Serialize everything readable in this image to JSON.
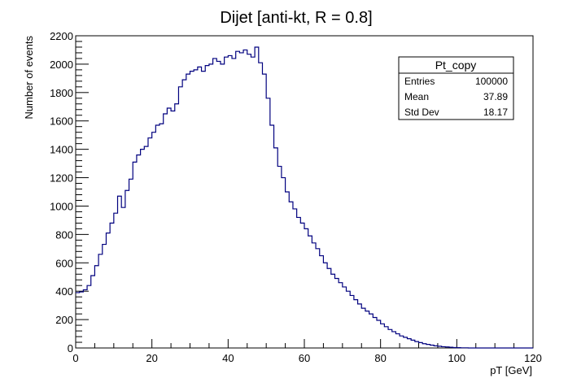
{
  "chart_data": {
    "type": "bar",
    "histogram": true,
    "title": "Dijet [anti-kt, R = 0.8]",
    "xlabel": "pT [GeV]",
    "ylabel": "Number of events",
    "xlim": [
      0,
      120
    ],
    "ylim": [
      0,
      2200
    ],
    "bin_width": 1,
    "line_color": "#00007f",
    "xticks": [
      0,
      20,
      40,
      60,
      80,
      100,
      120
    ],
    "yticks": [
      0,
      200,
      400,
      600,
      800,
      1000,
      1200,
      1400,
      1600,
      1800,
      2000,
      2200
    ],
    "values": [
      390,
      395,
      410,
      440,
      510,
      580,
      660,
      730,
      810,
      880,
      950,
      1070,
      990,
      1110,
      1190,
      1310,
      1360,
      1400,
      1420,
      1480,
      1520,
      1570,
      1580,
      1650,
      1690,
      1670,
      1720,
      1840,
      1890,
      1930,
      1950,
      1960,
      1980,
      1950,
      1990,
      2000,
      2040,
      2020,
      2000,
      2050,
      2060,
      2040,
      2090,
      2080,
      2100,
      2070,
      2050,
      2120,
      2010,
      1930,
      1760,
      1570,
      1410,
      1280,
      1200,
      1100,
      1030,
      980,
      920,
      880,
      840,
      790,
      740,
      700,
      650,
      600,
      560,
      520,
      490,
      460,
      430,
      400,
      370,
      340,
      310,
      280,
      260,
      240,
      215,
      195,
      170,
      150,
      130,
      115,
      100,
      85,
      75,
      65,
      55,
      45,
      38,
      30,
      25,
      20,
      15,
      12,
      9,
      7,
      5,
      3,
      2,
      1,
      1,
      0,
      0,
      0,
      0,
      0,
      0,
      0,
      0,
      0,
      0,
      0,
      0,
      0,
      0,
      0,
      0,
      0
    ],
    "stats_box": {
      "name": "Pt_copy",
      "rows": [
        {
          "label": "Entries",
          "value": "100000"
        },
        {
          "label": "Mean",
          "value": "37.89"
        },
        {
          "label": "Std Dev",
          "value": "18.17"
        }
      ]
    }
  }
}
